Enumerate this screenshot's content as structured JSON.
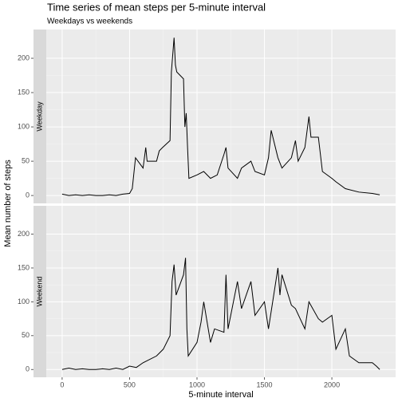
{
  "chart_data": {
    "type": "line",
    "facet": true,
    "title": "Time series of mean steps per 5-minute interval",
    "subtitle": "Weekdays vs weekends",
    "xlabel": "5-minute interval",
    "ylabel": "Mean number of steps",
    "xlim": [
      -117.75,
      2472.75
    ],
    "xticks": [
      0,
      500,
      1000,
      1500,
      2000
    ],
    "ylim": [
      -11.5,
      241.9
    ],
    "yticks": [
      0,
      50,
      100,
      150,
      200
    ],
    "grid": true,
    "series": [
      {
        "name": "Weekday",
        "color": "#000000",
        "x": [
          0,
          50,
          100,
          150,
          200,
          250,
          300,
          350,
          400,
          450,
          500,
          520,
          544,
          600,
          620,
          630,
          700,
          720,
          745,
          800,
          810,
          830,
          840,
          850,
          900,
          910,
          920,
          930,
          940,
          1000,
          1050,
          1100,
          1150,
          1200,
          1215,
          1230,
          1300,
          1330,
          1400,
          1430,
          1500,
          1530,
          1550,
          1600,
          1630,
          1700,
          1730,
          1750,
          1800,
          1830,
          1845,
          1900,
          1930,
          2000,
          2030,
          2100,
          2200,
          2300,
          2355
        ],
        "values": [
          2,
          0,
          1,
          0,
          1,
          0,
          0,
          1,
          0,
          2,
          3,
          10,
          55,
          40,
          70,
          50,
          50,
          65,
          70,
          80,
          180,
          230,
          190,
          180,
          170,
          100,
          120,
          70,
          25,
          30,
          35,
          25,
          30,
          60,
          70,
          40,
          25,
          40,
          50,
          35,
          30,
          55,
          95,
          55,
          40,
          55,
          80,
          50,
          70,
          115,
          85,
          85,
          35,
          25,
          20,
          10,
          5,
          3,
          1
        ]
      },
      {
        "name": "Weekend",
        "color": "#000000",
        "x": [
          0,
          50,
          100,
          150,
          200,
          250,
          300,
          350,
          400,
          450,
          500,
          550,
          600,
          700,
          750,
          800,
          815,
          830,
          845,
          900,
          915,
          925,
          935,
          1000,
          1030,
          1050,
          1100,
          1130,
          1200,
          1215,
          1230,
          1300,
          1330,
          1400,
          1430,
          1500,
          1530,
          1600,
          1615,
          1630,
          1700,
          1730,
          1800,
          1830,
          1900,
          1930,
          2000,
          2030,
          2100,
          2130,
          2200,
          2300,
          2330,
          2355
        ],
        "values": [
          0,
          2,
          0,
          1,
          0,
          0,
          1,
          0,
          2,
          0,
          5,
          3,
          10,
          20,
          30,
          50,
          130,
          155,
          110,
          140,
          165,
          60,
          20,
          40,
          70,
          100,
          40,
          60,
          55,
          140,
          60,
          130,
          90,
          130,
          80,
          100,
          60,
          150,
          110,
          140,
          95,
          90,
          60,
          100,
          75,
          70,
          80,
          30,
          60,
          20,
          10,
          10,
          5,
          0
        ]
      }
    ]
  }
}
